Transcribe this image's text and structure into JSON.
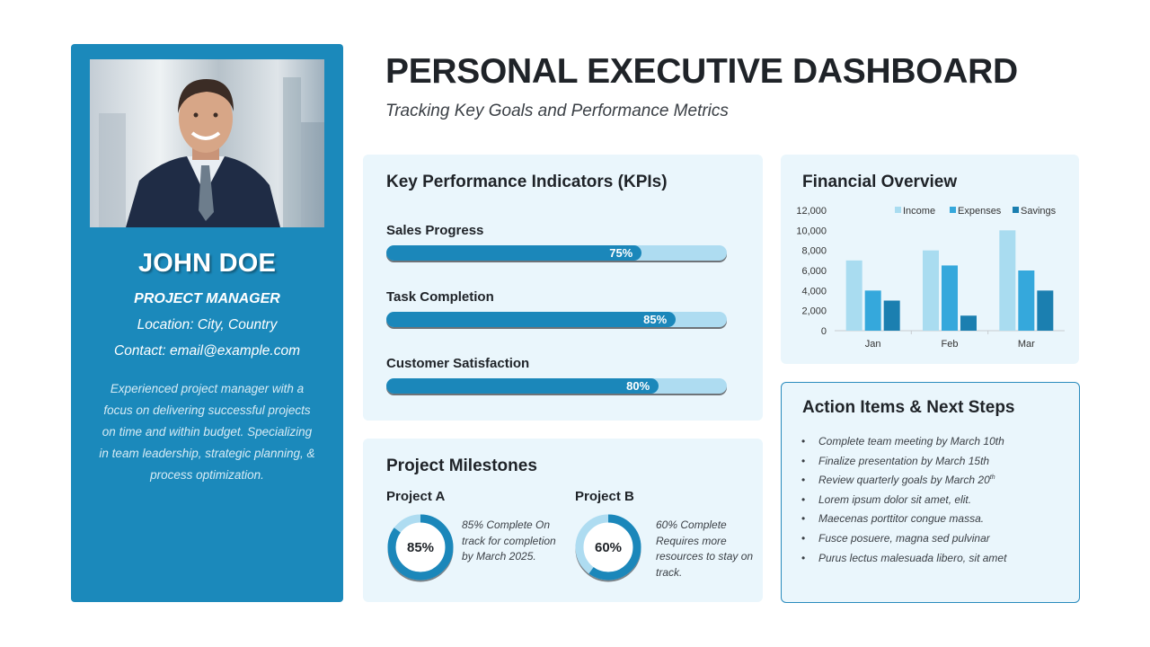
{
  "header": {
    "title": "PERSONAL EXECUTIVE DASHBOARD",
    "subtitle": "Tracking Key Goals and Performance Metrics"
  },
  "profile": {
    "name": "JOHN DOE",
    "role": "PROJECT MANAGER",
    "location": "Location: City, Country",
    "contact": "Contact: email@example.com",
    "bio": "Experienced project manager with a focus on delivering successful projects on time and within budget. Specializing in team leadership, strategic planning, & process optimization."
  },
  "kpis": {
    "title": "Key Performance Indicators (KPIs)",
    "items": [
      {
        "label": "Sales Progress",
        "value": 75,
        "value_label": "75%"
      },
      {
        "label": "Task Completion",
        "value": 85,
        "value_label": "85%"
      },
      {
        "label": "Customer Satisfaction",
        "value": 80,
        "value_label": "80%"
      }
    ]
  },
  "financial": {
    "title": "Financial Overview"
  },
  "chart_data": {
    "type": "bar",
    "title": "",
    "categories": [
      "Jan",
      "Feb",
      "Mar"
    ],
    "series": [
      {
        "name": "Income",
        "values": [
          7000,
          8000,
          10000
        ],
        "color": "#a9dcf0"
      },
      {
        "name": "Expenses",
        "values": [
          4000,
          6500,
          6000
        ],
        "color": "#35a8dc"
      },
      {
        "name": "Savings",
        "values": [
          3000,
          1500,
          4000
        ],
        "color": "#1b7fb0"
      }
    ],
    "ylim": [
      0,
      12000
    ],
    "yticks": [
      0,
      2000,
      4000,
      6000,
      8000,
      10000,
      12000
    ],
    "ytick_labels": [
      "0",
      "2,000",
      "4,000",
      "6,000",
      "8,000",
      "10,000",
      "12,000"
    ],
    "xlabel": "",
    "ylabel": "",
    "legend": "top-right",
    "grid": false
  },
  "milestones": {
    "title": "Project Milestones",
    "projects": [
      {
        "name": "Project A",
        "progress": 85,
        "progress_label": "85%",
        "description": "85% Complete On track for completion by March 2025."
      },
      {
        "name": "Project B",
        "progress": 60,
        "progress_label": "60%",
        "description": "60% Complete Requires more resources to stay on track."
      }
    ]
  },
  "actions": {
    "title": "Action Items & Next Steps",
    "items": [
      "Complete team meeting by March 10th",
      "Finalize presentation by March 15th",
      "Review quarterly goals by March 20",
      "Lorem ipsum dolor sit amet, elit.",
      "Maecenas porttitor congue massa.",
      "Fusce posuere, magna sed pulvinar",
      "Purus lectus malesuada libero, sit amet"
    ],
    "item3_sup": "th"
  },
  "colors": {
    "primary": "#1b89bb",
    "panel_bg": "#eaf6fc",
    "bar_track": "#aedcf1"
  },
  "icons": {
    "photo": "profile-photo"
  }
}
